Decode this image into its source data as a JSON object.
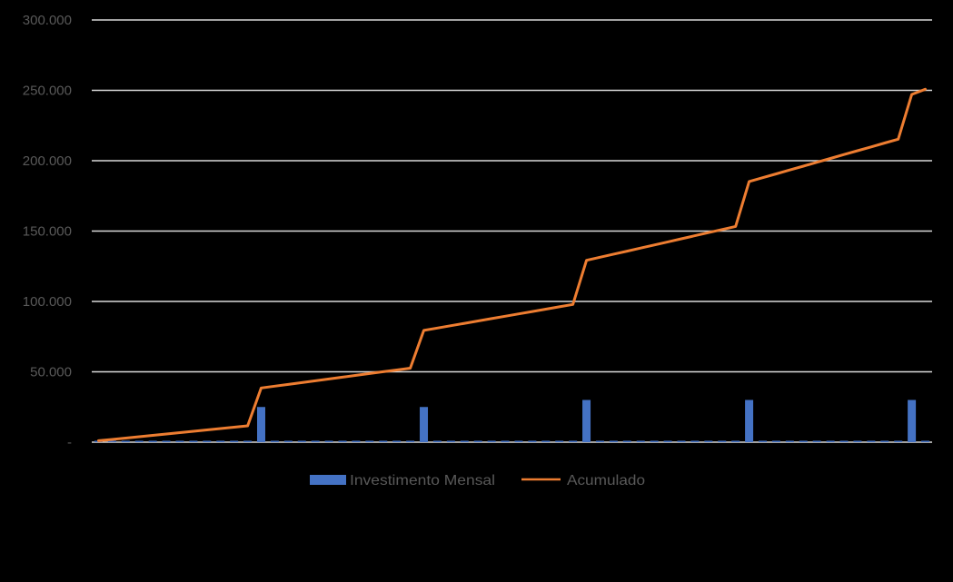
{
  "chart_data": {
    "type": "bar+line",
    "title": "",
    "xlabel": "",
    "ylabel": "",
    "x_tick_labels_visible": false,
    "ylim": [
      0,
      300000
    ],
    "y_ticks": [
      {
        "value": 300000,
        "label": "300.000"
      },
      {
        "value": 250000,
        "label": "250.000"
      },
      {
        "value": 200000,
        "label": "200.000"
      },
      {
        "value": 150000,
        "label": "150.000"
      },
      {
        "value": 100000,
        "label": "100.000"
      },
      {
        "value": 50000,
        "label": "50.000"
      },
      {
        "value": 0,
        "label": "-"
      }
    ],
    "grid": true,
    "legend_position": "bottom",
    "x": [
      1,
      2,
      3,
      4,
      5,
      6,
      7,
      8,
      9,
      10,
      11,
      12,
      13,
      14,
      15,
      16,
      17,
      18,
      19,
      20,
      21,
      22,
      23,
      24,
      25,
      26,
      27,
      28,
      29,
      30,
      31,
      32,
      33,
      34,
      35,
      36,
      37,
      38,
      39,
      40,
      41,
      42,
      43,
      44,
      45,
      46,
      47,
      48,
      49,
      50,
      51,
      52,
      53,
      54,
      55,
      56,
      57,
      58,
      59,
      60,
      61,
      62
    ],
    "series": [
      {
        "name": "Investimento Mensal",
        "type": "bar",
        "color": "#4472C4",
        "values": [
          1000,
          1000,
          1000,
          1000,
          1000,
          1000,
          1000,
          1000,
          1000,
          1000,
          1000,
          1000,
          25000,
          1000,
          1000,
          1000,
          1000,
          1000,
          1000,
          1000,
          1000,
          1000,
          1000,
          1000,
          25000,
          1000,
          1000,
          1000,
          1000,
          1000,
          1000,
          1000,
          1000,
          1000,
          1000,
          1000,
          30000,
          1000,
          1000,
          1000,
          1000,
          1000,
          1000,
          1000,
          1000,
          1000,
          1000,
          1000,
          30000,
          1000,
          1000,
          1000,
          1000,
          1000,
          1000,
          1000,
          1000,
          1000,
          1000,
          1000,
          30000,
          1000
        ]
      },
      {
        "name": "Acumulado",
        "type": "line",
        "color": "#ED7D31",
        "values": [
          1000,
          1964,
          2927,
          3891,
          4855,
          5818,
          6782,
          7745,
          8709,
          9673,
          10636,
          11600,
          38500,
          39782,
          41064,
          42345,
          43627,
          44909,
          46191,
          47473,
          48755,
          50036,
          51318,
          52600,
          79400,
          81082,
          82764,
          84445,
          86127,
          87809,
          89491,
          91173,
          92855,
          94536,
          96218,
          97900,
          129200,
          131391,
          133582,
          135773,
          137964,
          140155,
          142345,
          144536,
          146727,
          148918,
          151109,
          153300,
          185200,
          187936,
          190673,
          193409,
          196145,
          198882,
          201618,
          204355,
          207091,
          209827,
          212564,
          215300,
          247100,
          250800
        ]
      }
    ]
  },
  "legend": {
    "bar_label": "Investimento Mensal",
    "line_label": "Acumulado"
  },
  "colors": {
    "background": "#000000",
    "gridline": "#D9D9D9",
    "axis_text": "#595959",
    "bar": "#4472C4",
    "line": "#ED7D31"
  }
}
